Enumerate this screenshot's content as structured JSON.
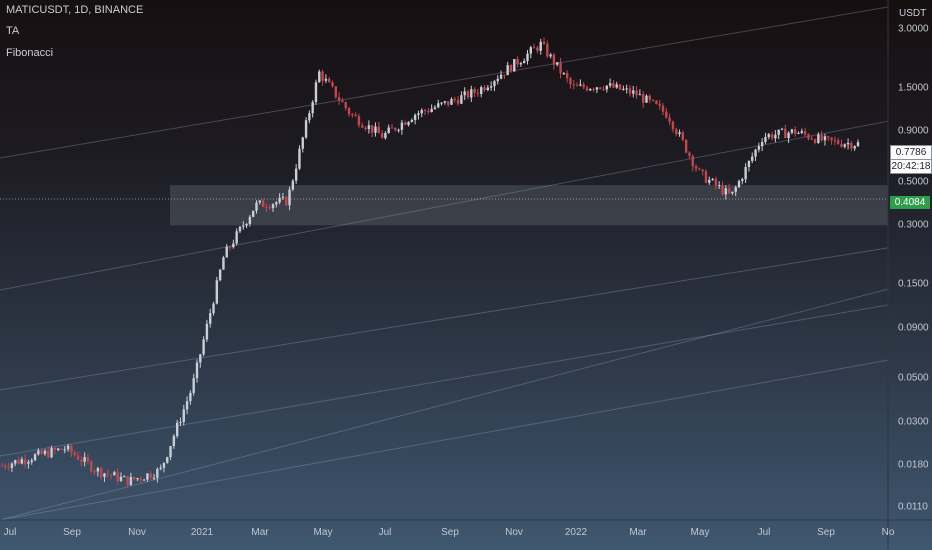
{
  "header": {
    "symbol_line": "MATICUSDT, 1D, BINANCE",
    "indicator_1": "TA",
    "indicator_2": "Fibonacci"
  },
  "price_axis": {
    "title": "USDT",
    "ticks": [
      "3.0000",
      "1.5000",
      "0.9000",
      "0.5000",
      "0.3000",
      "0.1500",
      "0.0900",
      "0.0500",
      "0.0300",
      "0.0180",
      "0.0110"
    ],
    "last_price": "0.7786",
    "countdown": "20:42:18",
    "level_price": "0.4084"
  },
  "time_axis": {
    "ticks": [
      "Jul",
      "Sep",
      "Nov",
      "2021",
      "Mar",
      "May",
      "Jul",
      "Sep",
      "Nov",
      "2022",
      "Mar",
      "May",
      "Jul",
      "Sep",
      "No"
    ]
  },
  "colors": {
    "bull_candle": "#c9ced6",
    "bear_candle": "#c2474f",
    "zone": "#9aa3ae",
    "channel_line": "#8fa3c9",
    "last_price_tag": "#ffffff",
    "level_tag": "#2e9e4d"
  },
  "chart_data": {
    "type": "candlestick",
    "scale": "log",
    "ylim": [
      0.0095,
      4.2
    ],
    "x": [
      "2020-07",
      "2020-08",
      "2020-09",
      "2020-10",
      "2020-11",
      "2020-12",
      "2021-01",
      "2021-02",
      "2021-03",
      "2021-04",
      "2021-05",
      "2021-06",
      "2021-07",
      "2021-08",
      "2021-09",
      "2021-10",
      "2021-11",
      "2021-12",
      "2022-01",
      "2022-02",
      "2022-03",
      "2022-04",
      "2022-05",
      "2022-06",
      "2022-07",
      "2022-08",
      "2022-09",
      "2022-10"
    ],
    "close": [
      0.018,
      0.02,
      0.022,
      0.017,
      0.015,
      0.017,
      0.045,
      0.21,
      0.38,
      0.4,
      1.8,
      1.1,
      0.85,
      1.1,
      1.25,
      1.45,
      1.9,
      2.5,
      1.5,
      1.55,
      1.4,
      1.1,
      0.55,
      0.42,
      0.85,
      0.9,
      0.8,
      0.78
    ],
    "zone": {
      "low": 0.3,
      "high": 0.48
    },
    "level_line": 0.4084,
    "last_price": 0.7786
  }
}
